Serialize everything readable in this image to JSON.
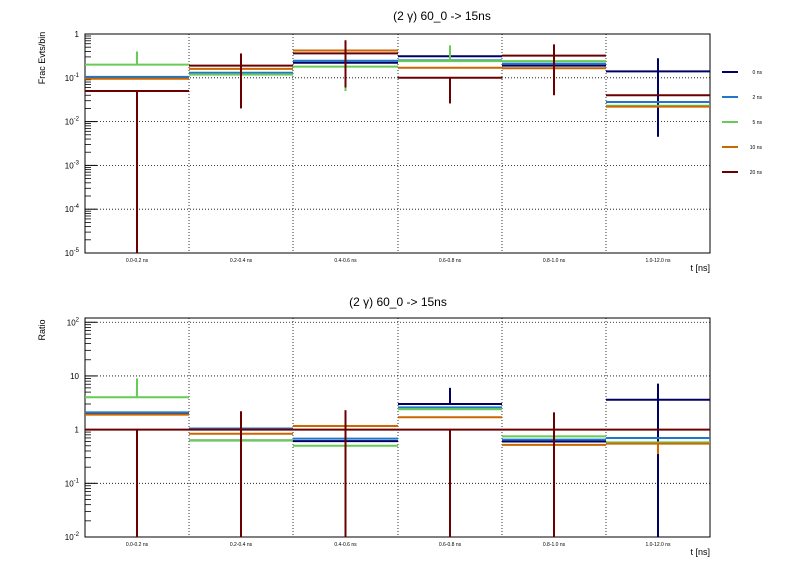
{
  "chart_data": [
    {
      "type": "step",
      "title": "(2 γ) 60_0 -> 15ns",
      "ylabel": "Frac Evts/bin",
      "xlabel": "t [ns]",
      "categories": [
        "0.0-0.2 ns",
        "0.2-0.4 ns",
        "0.4-0.6 ns",
        "0.6-0.8 ns",
        "0.8-1.0 ns",
        "1.0-12.0 ns"
      ],
      "yscale": "log",
      "ylim": [
        1e-05,
        1
      ],
      "y_ticks": [
        {
          "base": "1",
          "exp": ""
        },
        {
          "base": "10",
          "exp": "-1"
        },
        {
          "base": "10",
          "exp": "-2"
        },
        {
          "base": "10",
          "exp": "-3"
        },
        {
          "base": "10",
          "exp": "-4"
        },
        {
          "base": "10",
          "exp": "-5"
        }
      ],
      "grid": true,
      "legend_position": "right",
      "series": [
        {
          "name": "0 ns",
          "color": "#000066",
          "values": [
            0.1,
            0.12,
            0.22,
            0.31,
            0.19,
            0.14
          ],
          "err_lo": [
            0.1,
            0.12,
            0.22,
            0.31,
            0.19,
            0.0045
          ],
          "err_hi": [
            0.1,
            0.12,
            0.22,
            0.31,
            0.19,
            0.28
          ]
        },
        {
          "name": "2 ns",
          "color": "#1f78c8",
          "values": [
            0.105,
            0.13,
            0.245,
            0.25,
            0.21,
            0.028
          ]
        },
        {
          "name": "5 ns",
          "color": "#66cc55",
          "values": [
            0.2,
            0.12,
            0.18,
            0.24,
            0.24,
            0.023
          ],
          "err_lo": [
            0.2,
            0.12,
            0.05,
            0.24,
            0.24,
            0.023
          ],
          "err_hi": [
            0.4,
            0.12,
            0.18,
            0.55,
            0.24,
            0.023
          ]
        },
        {
          "name": "10 ns",
          "color": "#cc6600",
          "values": [
            0.095,
            0.16,
            0.42,
            0.17,
            0.165,
            0.022
          ]
        },
        {
          "name": "20 ns",
          "color": "#6b0000",
          "values": [
            0.05,
            0.19,
            0.36,
            0.1,
            0.32,
            0.04
          ],
          "err_lo": [
            1e-05,
            0.02,
            0.06,
            0.026,
            0.04,
            0.04
          ],
          "err_hi": [
            0.05,
            0.36,
            0.72,
            0.1,
            0.58,
            0.04
          ]
        }
      ]
    },
    {
      "type": "step",
      "title": "(2 γ) 60_0 -> 15ns",
      "ylabel": "Ratio",
      "xlabel": "t [ns]",
      "categories": [
        "0.0-0.2 ns",
        "0.2-0.4 ns",
        "0.4-0.6 ns",
        "0.6-0.8 ns",
        "0.8-1.0 ns",
        "1.0-12.0 ns"
      ],
      "yscale": "log",
      "ylim": [
        0.01,
        120
      ],
      "y_ticks": [
        {
          "base": "10",
          "exp": "2"
        },
        {
          "base": "10",
          "exp": ""
        },
        {
          "base": "1",
          "exp": ""
        },
        {
          "base": "10",
          "exp": "-1"
        },
        {
          "base": "10",
          "exp": "-2"
        }
      ],
      "grid": true,
      "series": [
        {
          "name": "0 ns",
          "color": "#000066",
          "values": [
            2.0,
            0.63,
            0.61,
            3.0,
            0.6,
            3.6
          ],
          "err_lo": [
            2.0,
            0.63,
            0.61,
            3.0,
            0.6,
            0.01
          ],
          "err_hi": [
            2.0,
            0.63,
            0.61,
            6.0,
            0.6,
            7.2
          ]
        },
        {
          "name": "2 ns",
          "color": "#1f78c8",
          "values": [
            2.1,
            1.05,
            0.68,
            2.6,
            0.65,
            0.7
          ]
        },
        {
          "name": "5 ns",
          "color": "#66cc55",
          "values": [
            4.0,
            0.63,
            0.5,
            2.4,
            0.75,
            0.58
          ],
          "err_lo": [
            4.0,
            0.63,
            0.5,
            2.4,
            0.75,
            0.58
          ],
          "err_hi": [
            9.0,
            0.63,
            0.5,
            2.4,
            0.75,
            0.58
          ]
        },
        {
          "name": "10 ns",
          "color": "#cc6600",
          "values": [
            1.9,
            0.84,
            1.17,
            1.7,
            0.52,
            0.55
          ],
          "err_lo": [
            1.9,
            0.84,
            1.17,
            1.7,
            0.52,
            0.35
          ],
          "err_hi": [
            1.9,
            0.84,
            1.17,
            1.7,
            0.52,
            0.55
          ]
        },
        {
          "name": "20 ns",
          "color": "#6b0000",
          "values": [
            1.0,
            1.0,
            1.0,
            1.0,
            1.0,
            1.0
          ],
          "err_lo": [
            0.01,
            0.01,
            0.01,
            0.01,
            0.01,
            1.0
          ],
          "err_hi": [
            1.0,
            2.2,
            2.3,
            1.0,
            2.1,
            1.0
          ]
        }
      ]
    }
  ]
}
